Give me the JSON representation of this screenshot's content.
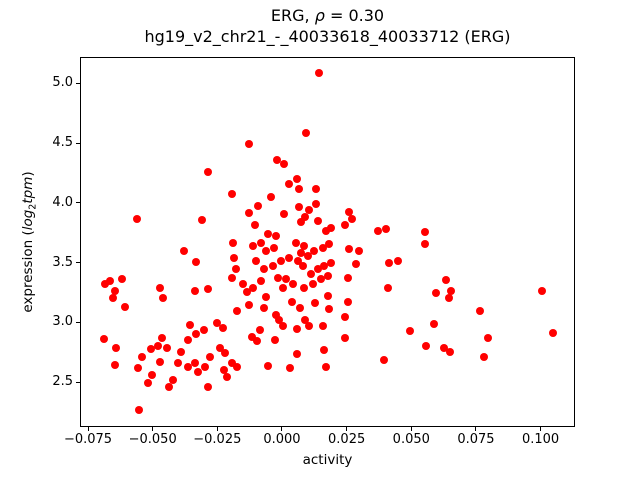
{
  "title": {
    "line1_gene": "ERG, ",
    "line1_rho": "ρ",
    "line1_eq": " = 0.30",
    "line2": "hg19_v2_chr21_-_40033618_40033712 (ERG)"
  },
  "ylabel_parts": {
    "prefix": "expression (",
    "log": "log",
    "sub": "2",
    "tpm": "tpm",
    "suffix": ")"
  },
  "chart_data": {
    "type": "scatter",
    "title": "ERG, ρ = 0.30",
    "subtitle": "hg19_v2_chr21_-_40033618_40033712 (ERG)",
    "xlabel": "activity",
    "ylabel": "expression (log2tpm)",
    "rho": 0.3,
    "grid": false,
    "legend": "none",
    "marker_color": "#ff0000",
    "xlim": [
      -0.0781,
      0.1133
    ],
    "ylim": [
      2.124,
      5.22
    ],
    "xticks": [
      -0.075,
      -0.05,
      -0.025,
      0.0,
      0.025,
      0.05,
      0.075,
      0.1
    ],
    "xtick_labels": [
      "−0.075",
      "−0.050",
      "−0.025",
      "0.000",
      "0.025",
      "0.050",
      "0.075",
      "0.100"
    ],
    "yticks": [
      2.5,
      3.0,
      3.5,
      4.0,
      4.5,
      5.0
    ],
    "ytick_labels": [
      "2.5",
      "3.0",
      "3.5",
      "4.0",
      "4.5",
      "5.0"
    ],
    "points": [
      [
        -0.0286,
        4.257
      ],
      [
        0.0143,
        5.086
      ],
      [
        0.0093,
        4.584
      ],
      [
        -0.0128,
        4.492
      ],
      [
        -0.0019,
        4.358
      ],
      [
        0.0008,
        4.324
      ],
      [
        0.0058,
        4.199
      ],
      [
        0.0027,
        4.157
      ],
      [
        0.0066,
        4.115
      ],
      [
        0.0131,
        4.115
      ],
      [
        -0.0043,
        4.048
      ],
      [
        -0.0093,
        3.972
      ],
      [
        -0.0128,
        3.914
      ],
      [
        0.0008,
        3.905
      ],
      [
        0.0066,
        3.964
      ],
      [
        0.0104,
        3.939
      ],
      [
        0.0089,
        3.88
      ],
      [
        0.0073,
        3.838
      ],
      [
        0.0131,
        3.989
      ],
      [
        0.0259,
        3.922
      ],
      [
        0.0271,
        3.863
      ],
      [
        0.0243,
        3.813
      ],
      [
        0.0189,
        3.788
      ],
      [
        0.017,
        3.763
      ],
      [
        0.0139,
        3.847
      ],
      [
        -0.0104,
        3.813
      ],
      [
        -0.0054,
        3.738
      ],
      [
        -0.0023,
        3.721
      ],
      [
        -0.0081,
        3.662
      ],
      [
        -0.0112,
        3.637
      ],
      [
        -0.0062,
        3.595
      ],
      [
        -0.0031,
        3.621
      ],
      [
        0.0054,
        3.662
      ],
      [
        0.0085,
        3.637
      ],
      [
        0.0073,
        3.579
      ],
      [
        0.01,
        3.554
      ],
      [
        0.0124,
        3.595
      ],
      [
        0.0158,
        3.621
      ],
      [
        0.0182,
        3.654
      ],
      [
        0.0259,
        3.612
      ],
      [
        0.0298,
        3.595
      ],
      [
        0.0371,
        3.763
      ],
      [
        0.0402,
        3.78
      ],
      [
        0.0286,
        3.487
      ],
      [
        0.0189,
        3.495
      ],
      [
        0.0162,
        3.47
      ],
      [
        0.0139,
        3.445
      ],
      [
        0.0112,
        3.403
      ],
      [
        0.0081,
        3.47
      ],
      [
        0.0062,
        3.512
      ],
      [
        0.0027,
        3.537
      ],
      [
        -0.0004,
        3.512
      ],
      [
        -0.0035,
        3.47
      ],
      [
        -0.007,
        3.445
      ],
      [
        -0.0101,
        3.512
      ],
      [
        -0.0016,
        3.369
      ],
      [
        0.0015,
        3.361
      ],
      [
        0.0042,
        3.319
      ],
      [
        0.0004,
        3.286
      ],
      [
        -0.0081,
        3.344
      ],
      [
        -0.0112,
        3.286
      ],
      [
        0.0085,
        3.286
      ],
      [
        0.012,
        3.319
      ],
      [
        0.0151,
        3.361
      ],
      [
        0.0178,
        3.386
      ],
      [
        0.0255,
        3.369
      ],
      [
        0.0414,
        3.495
      ],
      [
        0.0448,
        3.512
      ],
      [
        0.041,
        3.286
      ],
      [
        0.0039,
        3.168
      ],
      [
        0.007,
        3.118
      ],
      [
        0.0128,
        3.16
      ],
      [
        0.0255,
        3.168
      ],
      [
        0.0243,
        3.043
      ],
      [
        0.0178,
        3.219
      ],
      [
        0.0182,
        3.11
      ],
      [
        -0.0062,
        3.21
      ],
      [
        -0.007,
        3.118
      ],
      [
        -0.0193,
        4.073
      ],
      [
        -0.0561,
        3.863
      ],
      [
        -0.0309,
        3.855
      ],
      [
        -0.0379,
        3.595
      ],
      [
        -0.0332,
        3.503
      ],
      [
        -0.0189,
        3.662
      ],
      [
        -0.0186,
        3.537
      ],
      [
        -0.0178,
        3.445
      ],
      [
        -0.0193,
        3.369
      ],
      [
        -0.0151,
        3.319
      ],
      [
        -0.0135,
        3.252
      ],
      [
        -0.0665,
        3.344
      ],
      [
        -0.0619,
        3.361
      ],
      [
        -0.0684,
        3.319
      ],
      [
        -0.0646,
        3.26
      ],
      [
        -0.0653,
        3.202
      ],
      [
        -0.0472,
        3.286
      ],
      [
        -0.046,
        3.202
      ],
      [
        -0.0336,
        3.26
      ],
      [
        -0.0286,
        3.277
      ],
      [
        -0.0607,
        3.127
      ],
      [
        0.0553,
        3.755
      ],
      [
        0.0553,
        3.654
      ],
      [
        0.0634,
        3.353
      ],
      [
        0.0595,
        3.244
      ],
      [
        0.0653,
        3.26
      ],
      [
        0.0646,
        3.202
      ],
      [
        0.1005,
        3.26
      ],
      [
        -0.0688,
        2.858
      ],
      [
        -0.0642,
        2.783
      ],
      [
        -0.0646,
        2.641
      ],
      [
        -0.0541,
        2.708
      ],
      [
        -0.0557,
        2.616
      ],
      [
        -0.0506,
        2.775
      ],
      [
        -0.0479,
        2.8
      ],
      [
        -0.0464,
        2.867
      ],
      [
        -0.0445,
        2.783
      ],
      [
        -0.0472,
        2.666
      ],
      [
        -0.0503,
        2.557
      ],
      [
        -0.0518,
        2.49
      ],
      [
        -0.0421,
        2.515
      ],
      [
        -0.0437,
        2.456
      ],
      [
        -0.0553,
        2.264
      ],
      [
        -0.0356,
        2.976
      ],
      [
        -0.0332,
        2.9
      ],
      [
        -0.0363,
        2.85
      ],
      [
        -0.039,
        2.75
      ],
      [
        -0.0402,
        2.657
      ],
      [
        -0.0363,
        2.624
      ],
      [
        -0.0336,
        2.657
      ],
      [
        -0.0325,
        2.582
      ],
      [
        -0.0298,
        2.624
      ],
      [
        -0.0278,
        2.708
      ],
      [
        -0.0302,
        2.934
      ],
      [
        -0.0251,
        2.993
      ],
      [
        -0.0228,
        2.951
      ],
      [
        -0.024,
        2.783
      ],
      [
        -0.022,
        2.741
      ],
      [
        -0.0193,
        2.657
      ],
      [
        -0.0174,
        2.624
      ],
      [
        -0.0224,
        2.599
      ],
      [
        -0.0213,
        2.54
      ],
      [
        -0.0286,
        2.456
      ],
      [
        -0.0174,
        3.093
      ],
      [
        -0.0128,
        3.143
      ],
      [
        -0.0023,
        3.059
      ],
      [
        -0.0012,
        3.018
      ],
      [
        0.0004,
        2.967
      ],
      [
        0.0058,
        2.942
      ],
      [
        0.0089,
        3.018
      ],
      [
        0.0104,
        2.967
      ],
      [
        -0.0116,
        2.875
      ],
      [
        -0.0097,
        2.842
      ],
      [
        -0.0027,
        2.85
      ],
      [
        0.0058,
        2.733
      ],
      [
        -0.0085,
        2.934
      ],
      [
        0.0158,
        2.967
      ],
      [
        0.0243,
        2.867
      ],
      [
        0.0162,
        2.766
      ],
      [
        0.017,
        2.624
      ],
      [
        -0.0054,
        2.632
      ],
      [
        0.0031,
        2.616
      ],
      [
        0.0394,
        2.683
      ],
      [
        0.0495,
        2.926
      ],
      [
        0.0588,
        2.984
      ],
      [
        0.0557,
        2.8
      ],
      [
        0.0626,
        2.783
      ],
      [
        0.0649,
        2.75
      ],
      [
        0.0765,
        3.093
      ],
      [
        0.0796,
        2.867
      ],
      [
        0.0781,
        2.708
      ],
      [
        0.1048,
        2.909
      ]
    ]
  }
}
